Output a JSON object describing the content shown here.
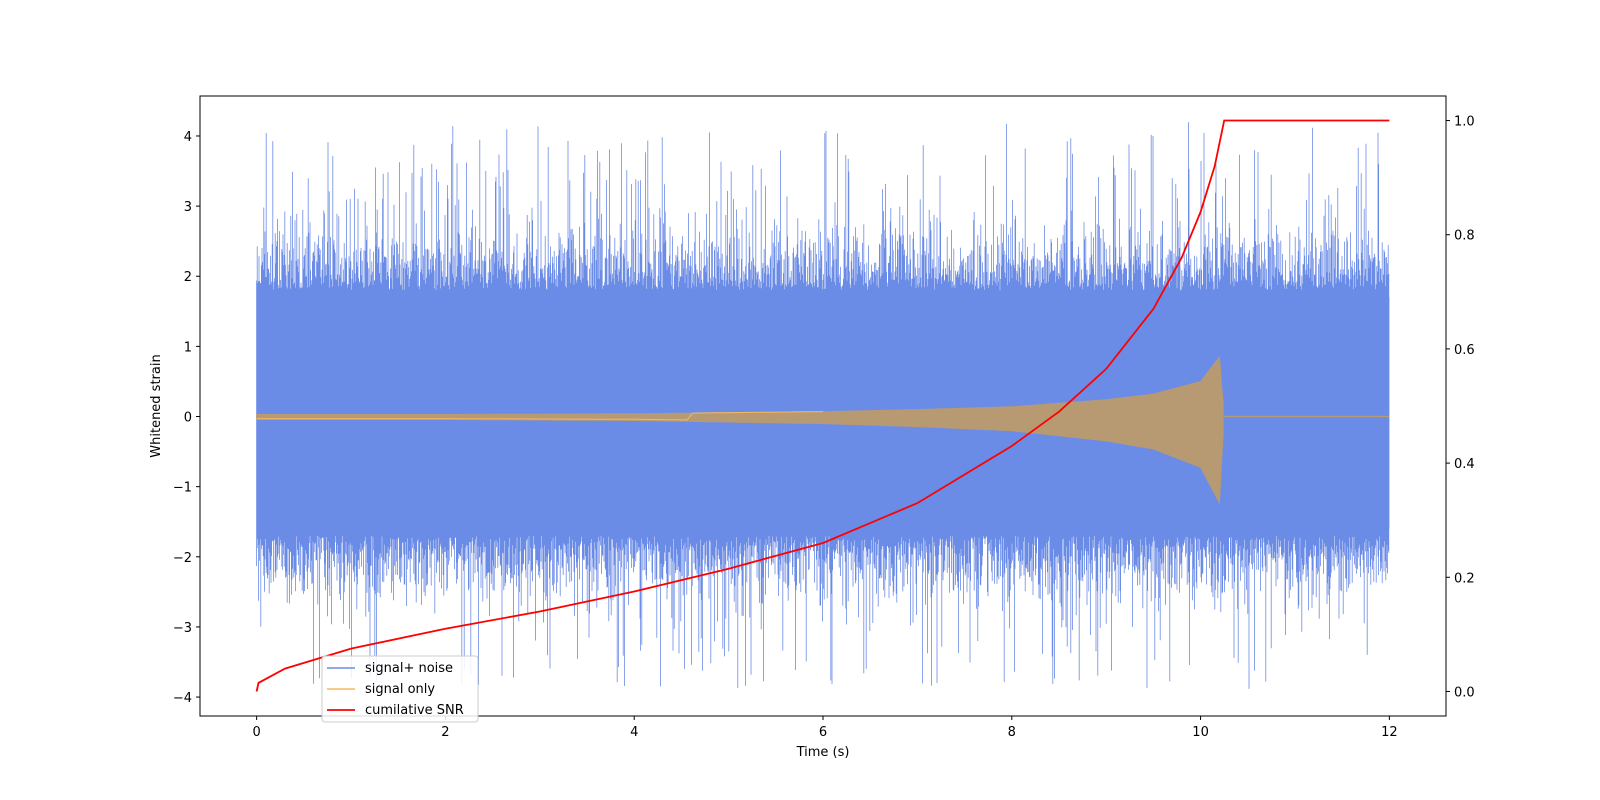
{
  "chart_data": {
    "type": "line",
    "xlabel": "Time (s)",
    "ylabel": "Whitened strain",
    "ylabel_right": "",
    "xlim": [
      -0.6,
      12.6
    ],
    "ylim": [
      -4.27,
      4.57
    ],
    "ylim_right": [
      -0.043,
      1.043
    ],
    "x_ticks": [
      0,
      2,
      4,
      6,
      8,
      10,
      12
    ],
    "y_ticks": [
      -4,
      -3,
      -2,
      -1,
      0,
      1,
      2,
      3,
      4
    ],
    "y_ticks_right": [
      0.0,
      0.2,
      0.4,
      0.6,
      0.8,
      1.0
    ],
    "x_tick_labels": [
      "0",
      "2",
      "4",
      "6",
      "8",
      "10",
      "12"
    ],
    "y_tick_labels": [
      "−4",
      "−3",
      "−2",
      "−1",
      "0",
      "1",
      "2",
      "3",
      "4"
    ],
    "y_tick_labels_right": [
      "0.0",
      "0.2",
      "0.4",
      "0.6",
      "0.8",
      "1.0"
    ],
    "grid": false,
    "legend_position": "lower-left",
    "series": [
      {
        "name": "signal+ noise",
        "axis": "left",
        "color": "#6b8ce6",
        "kind": "noisy-band",
        "x_range": [
          0,
          12
        ],
        "typical_envelope": [
          -1.7,
          1.8
        ],
        "peak_range": [
          -3.9,
          4.2
        ]
      },
      {
        "name": "signal only",
        "axis": "left",
        "color": "#f5b860",
        "kind": "chirp",
        "x_range": [
          0,
          12
        ],
        "merger_time": 10.25,
        "envelope": [
          {
            "x": 0.0,
            "y": 0.03
          },
          {
            "x": 2.0,
            "y": 0.03
          },
          {
            "x": 4.0,
            "y": 0.04
          },
          {
            "x": 6.0,
            "y": 0.07
          },
          {
            "x": 7.0,
            "y": 0.1
          },
          {
            "x": 8.0,
            "y": 0.14
          },
          {
            "x": 9.0,
            "y": 0.24
          },
          {
            "x": 9.5,
            "y": 0.32
          },
          {
            "x": 10.0,
            "y": 0.5
          },
          {
            "x": 10.2,
            "y": 0.85
          },
          {
            "x": 10.25,
            "y": 0.0
          },
          {
            "x": 12.0,
            "y": 0.0
          }
        ]
      },
      {
        "name": "cumilative SNR",
        "axis": "right",
        "color": "#ff0000",
        "kind": "line",
        "points": [
          {
            "x": 0.0,
            "y": 0.0
          },
          {
            "x": 0.02,
            "y": 0.015
          },
          {
            "x": 0.3,
            "y": 0.04
          },
          {
            "x": 1.0,
            "y": 0.075
          },
          {
            "x": 2.0,
            "y": 0.11
          },
          {
            "x": 3.0,
            "y": 0.14
          },
          {
            "x": 4.0,
            "y": 0.175
          },
          {
            "x": 5.0,
            "y": 0.215
          },
          {
            "x": 6.0,
            "y": 0.26
          },
          {
            "x": 7.0,
            "y": 0.33
          },
          {
            "x": 8.0,
            "y": 0.43
          },
          {
            "x": 8.5,
            "y": 0.49
          },
          {
            "x": 9.0,
            "y": 0.565
          },
          {
            "x": 9.5,
            "y": 0.67
          },
          {
            "x": 9.8,
            "y": 0.76
          },
          {
            "x": 10.0,
            "y": 0.84
          },
          {
            "x": 10.15,
            "y": 0.92
          },
          {
            "x": 10.25,
            "y": 1.0
          },
          {
            "x": 12.0,
            "y": 1.0
          }
        ]
      }
    ]
  }
}
